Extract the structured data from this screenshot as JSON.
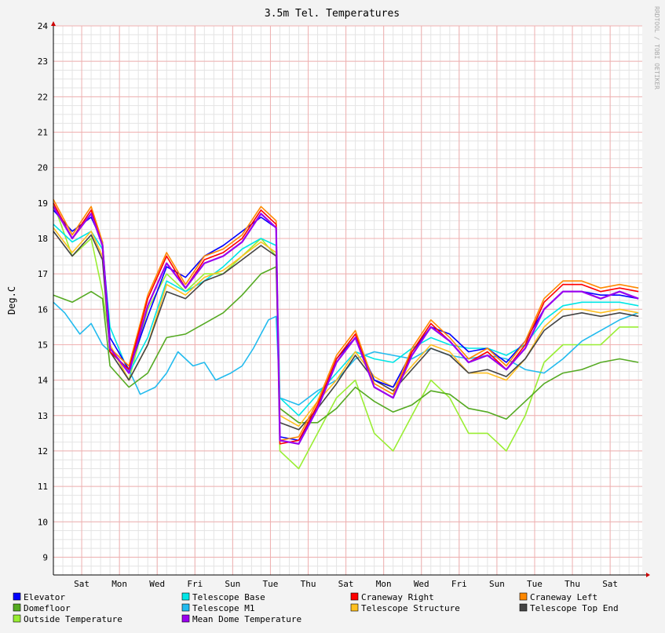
{
  "chart_data": {
    "type": "line",
    "title": "3.5m Tel. Temperatures",
    "ylabel": "Deg.C",
    "watermark": "RRDTOOL / TOBI OETIKER",
    "ylim": [
      8.5,
      24
    ],
    "yticks": [
      9,
      10,
      11,
      12,
      13,
      14,
      15,
      16,
      17,
      18,
      19,
      20,
      21,
      22,
      23,
      24
    ],
    "xlim": [
      0,
      15.6
    ],
    "xticks": [
      {
        "x": 0.75,
        "label": "Sat"
      },
      {
        "x": 1.75,
        "label": "Mon"
      },
      {
        "x": 2.75,
        "label": "Wed"
      },
      {
        "x": 3.75,
        "label": "Fri"
      },
      {
        "x": 4.75,
        "label": "Sun"
      },
      {
        "x": 5.75,
        "label": "Tue"
      },
      {
        "x": 6.75,
        "label": "Thu"
      },
      {
        "x": 7.75,
        "label": "Sat"
      },
      {
        "x": 8.75,
        "label": "Mon"
      },
      {
        "x": 9.75,
        "label": "Wed"
      },
      {
        "x": 10.75,
        "label": "Fri"
      },
      {
        "x": 11.75,
        "label": "Sun"
      },
      {
        "x": 12.75,
        "label": "Tue"
      },
      {
        "x": 13.75,
        "label": "Thu"
      },
      {
        "x": 14.75,
        "label": "Sat"
      }
    ],
    "grid": true,
    "legend_position": "bottom",
    "series": [
      {
        "name": "Elevator",
        "color": "#0000ff",
        "x": [
          0,
          0.5,
          1,
          1.3,
          1.5,
          2,
          2.5,
          3,
          3.5,
          4,
          4.5,
          5,
          5.5,
          5.9,
          6,
          6.5,
          7,
          7.5,
          8,
          8.5,
          9,
          9.5,
          10,
          10.5,
          11,
          11.5,
          12,
          12.5,
          13,
          13.5,
          14,
          14.5,
          15,
          15.5
        ],
        "values": [
          18.8,
          18.2,
          18.6,
          17.9,
          15.2,
          14.3,
          15.8,
          17.2,
          16.9,
          17.5,
          17.8,
          18.2,
          18.6,
          18.3,
          12.4,
          12.3,
          13.2,
          14.6,
          15.2,
          14.0,
          13.8,
          14.8,
          15.5,
          15.3,
          14.8,
          14.9,
          14.5,
          15.1,
          16.0,
          16.5,
          16.5,
          16.4,
          16.4,
          16.3
        ]
      },
      {
        "name": "Telescope Base",
        "color": "#00e6e6",
        "x": [
          0,
          0.5,
          1,
          1.3,
          1.5,
          2,
          2.5,
          3,
          3.5,
          4,
          4.5,
          5,
          5.5,
          5.9,
          6,
          6.5,
          7,
          7.5,
          8,
          8.5,
          9,
          9.5,
          10,
          10.5,
          11,
          11.5,
          12,
          12.5,
          13,
          13.5,
          14,
          14.5,
          15,
          15.5
        ],
        "values": [
          18.4,
          17.9,
          18.2,
          17.7,
          15.5,
          14.2,
          15.2,
          16.8,
          16.5,
          16.8,
          17.2,
          17.7,
          18.0,
          17.8,
          13.5,
          13.0,
          13.6,
          14.2,
          14.8,
          14.6,
          14.5,
          14.9,
          15.2,
          15.0,
          14.9,
          14.9,
          14.7,
          15.0,
          15.7,
          16.1,
          16.2,
          16.2,
          16.2,
          16.1
        ]
      },
      {
        "name": "Craneway Right",
        "color": "#ff0000",
        "x": [
          0,
          0.5,
          1,
          1.3,
          1.5,
          2,
          2.5,
          3,
          3.5,
          4,
          4.5,
          5,
          5.5,
          5.9,
          6,
          6.5,
          7,
          7.5,
          8,
          8.5,
          9,
          9.5,
          10,
          10.5,
          11,
          11.5,
          12,
          12.5,
          13,
          13.5,
          14,
          14.5,
          15,
          15.5
        ],
        "values": [
          19.0,
          18.0,
          18.8,
          17.8,
          14.8,
          14.3,
          16.3,
          17.5,
          16.6,
          17.4,
          17.6,
          18.0,
          18.8,
          18.4,
          12.2,
          12.3,
          13.3,
          14.6,
          15.3,
          13.8,
          13.5,
          14.8,
          15.6,
          15.1,
          14.5,
          14.8,
          14.3,
          15.0,
          16.2,
          16.7,
          16.7,
          16.5,
          16.6,
          16.5
        ]
      },
      {
        "name": "Craneway Left",
        "color": "#ff8800",
        "x": [
          0,
          0.5,
          1,
          1.3,
          1.5,
          2,
          2.5,
          3,
          3.5,
          4,
          4.5,
          5,
          5.5,
          5.9,
          6,
          6.5,
          7,
          7.5,
          8,
          8.5,
          9,
          9.5,
          10,
          10.5,
          11,
          11.5,
          12,
          12.5,
          13,
          13.5,
          14,
          14.5,
          15,
          15.5
        ],
        "values": [
          19.1,
          18.1,
          18.9,
          17.9,
          14.9,
          14.4,
          16.4,
          17.6,
          16.7,
          17.5,
          17.7,
          18.1,
          18.9,
          18.5,
          12.3,
          12.4,
          13.4,
          14.7,
          15.4,
          13.9,
          13.6,
          14.9,
          15.7,
          15.2,
          14.6,
          14.9,
          14.4,
          15.1,
          16.3,
          16.8,
          16.8,
          16.6,
          16.7,
          16.6
        ]
      },
      {
        "name": "Domefloor",
        "color": "#55aa22",
        "x": [
          0,
          0.5,
          1,
          1.3,
          1.5,
          2,
          2.5,
          3,
          3.5,
          4,
          4.5,
          5,
          5.5,
          5.9,
          6,
          6.5,
          7,
          7.5,
          8,
          8.5,
          9,
          9.5,
          10,
          10.5,
          11,
          11.5,
          12,
          12.5,
          13,
          13.5,
          14,
          14.5,
          15,
          15.5
        ],
        "values": [
          16.4,
          16.2,
          16.5,
          16.3,
          14.4,
          13.8,
          14.2,
          15.2,
          15.3,
          15.6,
          15.9,
          16.4,
          17.0,
          17.2,
          13.2,
          12.8,
          12.8,
          13.2,
          13.8,
          13.4,
          13.1,
          13.3,
          13.7,
          13.6,
          13.2,
          13.1,
          12.9,
          13.4,
          13.9,
          14.2,
          14.3,
          14.5,
          14.6,
          14.5
        ]
      },
      {
        "name": "Telescope M1",
        "color": "#22bbee",
        "x": [
          0,
          0.3,
          0.7,
          1,
          1.3,
          1.7,
          2,
          2.3,
          2.7,
          3,
          3.3,
          3.7,
          4,
          4.3,
          4.7,
          5,
          5.3,
          5.7,
          5.9,
          6,
          6.5,
          7,
          7.5,
          8,
          8.5,
          9,
          9.5,
          10,
          10.5,
          11,
          11.5,
          12,
          12.5,
          13,
          13.5,
          14,
          14.5,
          15,
          15.5
        ],
        "values": [
          16.2,
          15.9,
          15.3,
          15.6,
          15.0,
          14.6,
          14.3,
          13.6,
          13.8,
          14.2,
          14.8,
          14.4,
          14.5,
          14.0,
          14.2,
          14.4,
          14.9,
          15.7,
          15.8,
          13.5,
          13.3,
          13.7,
          14.0,
          14.6,
          14.8,
          14.7,
          14.6,
          14.9,
          14.7,
          14.6,
          14.7,
          14.6,
          14.3,
          14.2,
          14.6,
          15.1,
          15.4,
          15.7,
          15.9
        ]
      },
      {
        "name": "Telescope Structure",
        "color": "#ffc020",
        "x": [
          0,
          0.5,
          1,
          1.3,
          1.5,
          2,
          2.5,
          3,
          3.5,
          4,
          4.5,
          5,
          5.5,
          5.9,
          6,
          6.5,
          7,
          7.5,
          8,
          8.5,
          9,
          9.5,
          10,
          10.5,
          11,
          11.5,
          12,
          12.5,
          13,
          13.5,
          14,
          14.5,
          15,
          15.5
        ],
        "values": [
          18.3,
          17.6,
          18.2,
          17.5,
          15.0,
          14.0,
          15.0,
          16.7,
          16.4,
          16.9,
          17.1,
          17.5,
          17.9,
          17.6,
          13.0,
          12.7,
          13.4,
          14.0,
          14.8,
          14.1,
          13.8,
          14.4,
          15.0,
          14.8,
          14.2,
          14.2,
          14.0,
          14.6,
          15.5,
          16.0,
          16.0,
          15.9,
          16.0,
          15.9
        ]
      },
      {
        "name": "Telescope Top End",
        "color": "#444444",
        "x": [
          0,
          0.5,
          1,
          1.3,
          1.5,
          2,
          2.5,
          3,
          3.5,
          4,
          4.5,
          5,
          5.5,
          5.9,
          6,
          6.5,
          7,
          7.5,
          8,
          8.5,
          9,
          9.5,
          10,
          10.5,
          11,
          11.5,
          12,
          12.5,
          13,
          13.5,
          14,
          14.5,
          15,
          15.5
        ],
        "values": [
          18.2,
          17.5,
          18.1,
          17.4,
          14.8,
          14.0,
          15.0,
          16.5,
          16.3,
          16.8,
          17.0,
          17.4,
          17.8,
          17.5,
          12.8,
          12.6,
          13.2,
          13.9,
          14.7,
          14.0,
          13.7,
          14.3,
          14.9,
          14.7,
          14.2,
          14.3,
          14.1,
          14.6,
          15.4,
          15.8,
          15.9,
          15.8,
          15.9,
          15.8
        ]
      },
      {
        "name": "Outside Temperature",
        "color": "#99ee33",
        "x": [
          0,
          0.5,
          1,
          1.3,
          1.5,
          2,
          2.5,
          3,
          3.5,
          4,
          4.5,
          5,
          5.5,
          5.9,
          6,
          6.5,
          7,
          7.5,
          8,
          8.5,
          9,
          9.5,
          10,
          10.5,
          11,
          11.5,
          12,
          12.5,
          13,
          13.5,
          14,
          14.5,
          15,
          15.5
        ],
        "values": [
          19.0,
          17.5,
          18.0,
          16.5,
          15.0,
          14.0,
          16.0,
          17.0,
          16.5,
          17.0,
          17.0,
          17.5,
          18.0,
          17.5,
          12.0,
          11.5,
          12.5,
          13.5,
          14.0,
          12.5,
          12.0,
          13.0,
          14.0,
          13.5,
          12.5,
          12.5,
          12.0,
          13.0,
          14.5,
          15.0,
          15.0,
          15.0,
          15.5,
          15.5
        ]
      },
      {
        "name": "Mean Dome Temperature",
        "color": "#9900ee",
        "x": [
          0,
          0.5,
          1,
          1.3,
          1.5,
          2,
          2.5,
          3,
          3.5,
          4,
          4.5,
          5,
          5.5,
          5.9,
          6,
          6.5,
          7,
          7.5,
          8,
          8.5,
          9,
          9.5,
          10,
          10.5,
          11,
          11.5,
          12,
          12.5,
          13,
          13.5,
          14,
          14.5,
          15,
          15.5
        ],
        "values": [
          18.9,
          18.0,
          18.7,
          17.8,
          14.9,
          14.2,
          16.1,
          17.3,
          16.6,
          17.3,
          17.5,
          17.9,
          18.7,
          18.3,
          12.3,
          12.2,
          13.2,
          14.5,
          15.2,
          13.8,
          13.5,
          14.7,
          15.5,
          15.1,
          14.5,
          14.7,
          14.3,
          14.9,
          16.0,
          16.5,
          16.5,
          16.3,
          16.5,
          16.3
        ]
      }
    ]
  }
}
